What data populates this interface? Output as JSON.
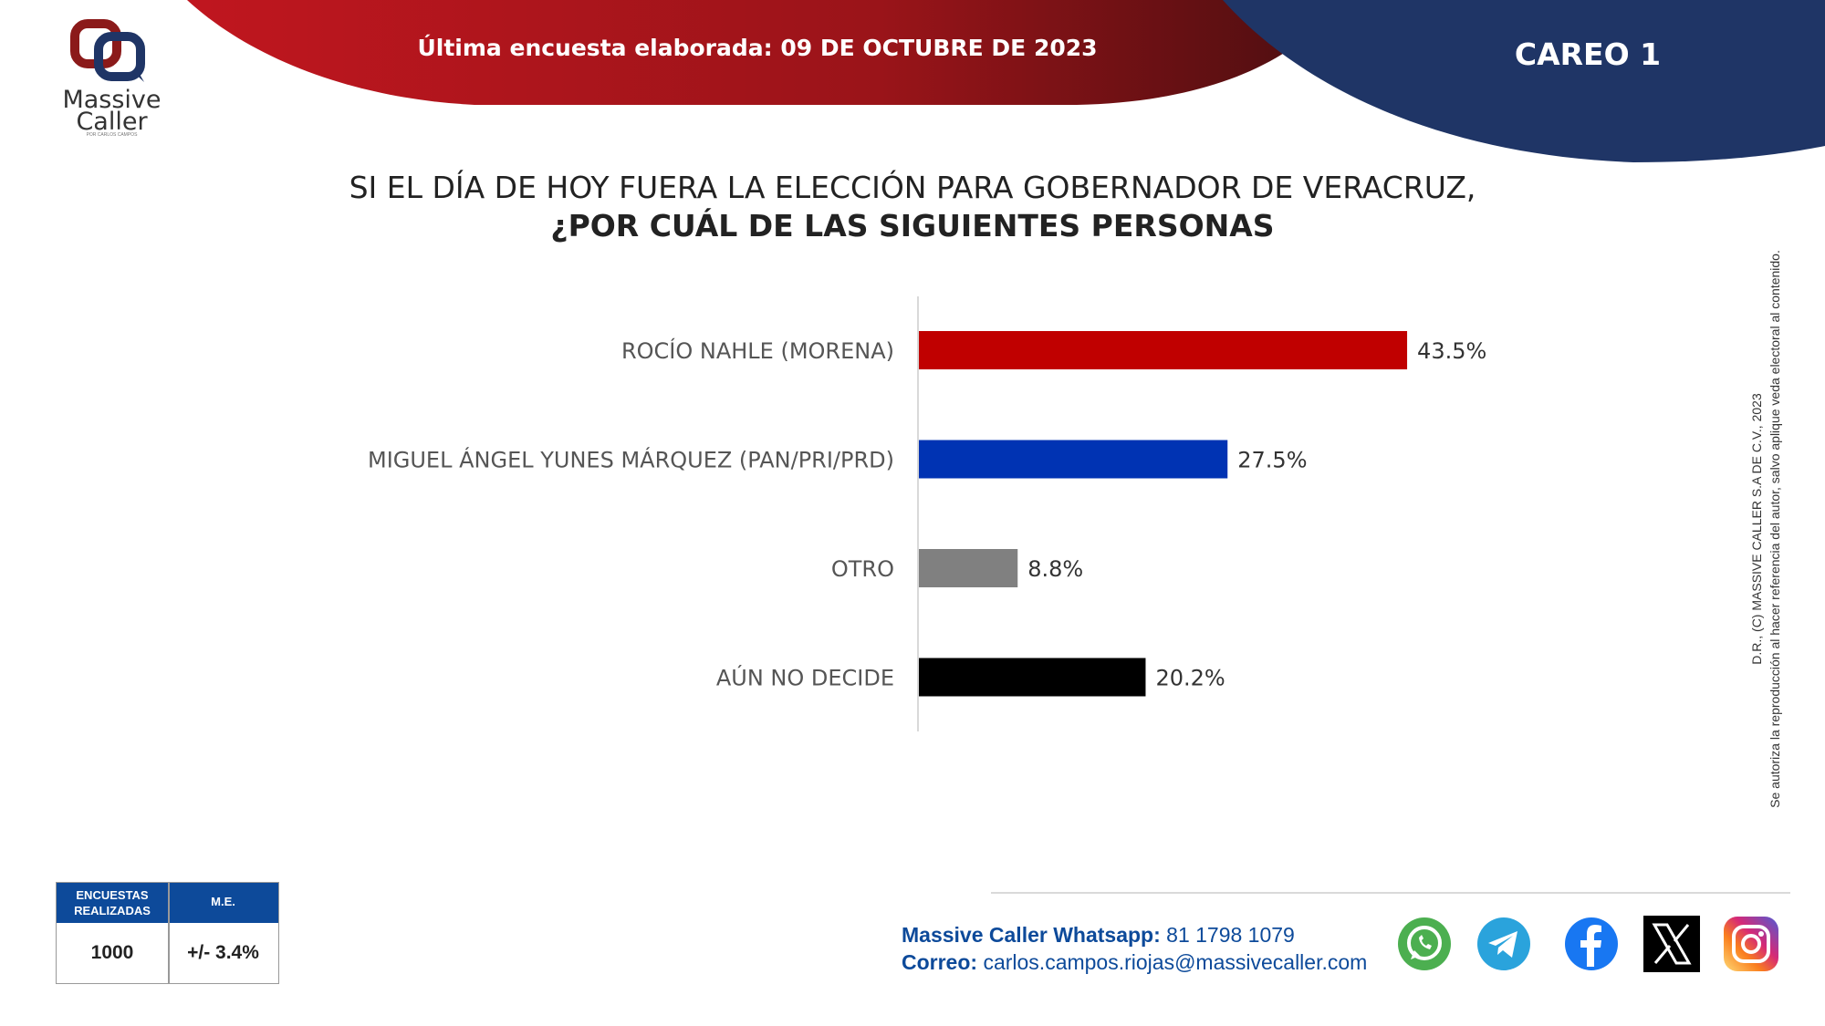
{
  "header": {
    "survey_date": "Última encuesta elaborada: 09 DE OCTUBRE DE 2023",
    "careo": "CAREO 1"
  },
  "logo": {
    "line1": "Massive",
    "line2": "Caller",
    "tagline": "POR CARLOS CAMPOS"
  },
  "question": {
    "line1": "SI EL DÍA DE HOY FUERA LA ELECCIÓN PARA GOBERNADOR DE VERACRUZ,",
    "line2": "¿POR CUÁL DE LAS SIGUIENTES PERSONAS"
  },
  "chart_data": {
    "type": "bar",
    "orientation": "horizontal",
    "categories": [
      "ROCÍO NAHLE (MORENA)",
      "MIGUEL ÁNGEL YUNES MÁRQUEZ (PAN/PRI/PRD)",
      "OTRO",
      "AÚN NO DECIDE"
    ],
    "values": [
      43.5,
      27.5,
      8.8,
      20.2
    ],
    "value_labels": [
      "43.5%",
      "27.5%",
      "8.8%",
      "20.2%"
    ],
    "colors": [
      "#c00000",
      "#0033b3",
      "#808080",
      "#000000"
    ],
    "xlim": [
      0,
      100
    ],
    "grid": false,
    "legend": "none"
  },
  "copyright": {
    "line1": "D.R., (C) MASSIVE CALLER S.A DE C.V., 2023",
    "line2": "Se autoriza la reproducción al hacer referencia del autor, salvo aplique veda electoral al contenido."
  },
  "stats": {
    "surveys_header": "ENCUESTAS REALIZADAS",
    "margin_header": "M.E.",
    "surveys_value": "1000",
    "margin_value": "+/- 3.4%"
  },
  "contact": {
    "whatsapp_label": "Massive Caller Whatsapp:",
    "whatsapp_value": " 81 1798 1079",
    "email_label": "Correo:",
    "email_value": " carlos.campos.riojas@massivecaller.com"
  },
  "social_icons": [
    "whatsapp-icon",
    "telegram-icon",
    "facebook-icon",
    "x-icon",
    "instagram-icon"
  ],
  "colors": {
    "brand_red": "#b0141e",
    "brand_blue": "#1f3566",
    "accent_blue": "#0d4a9a"
  }
}
